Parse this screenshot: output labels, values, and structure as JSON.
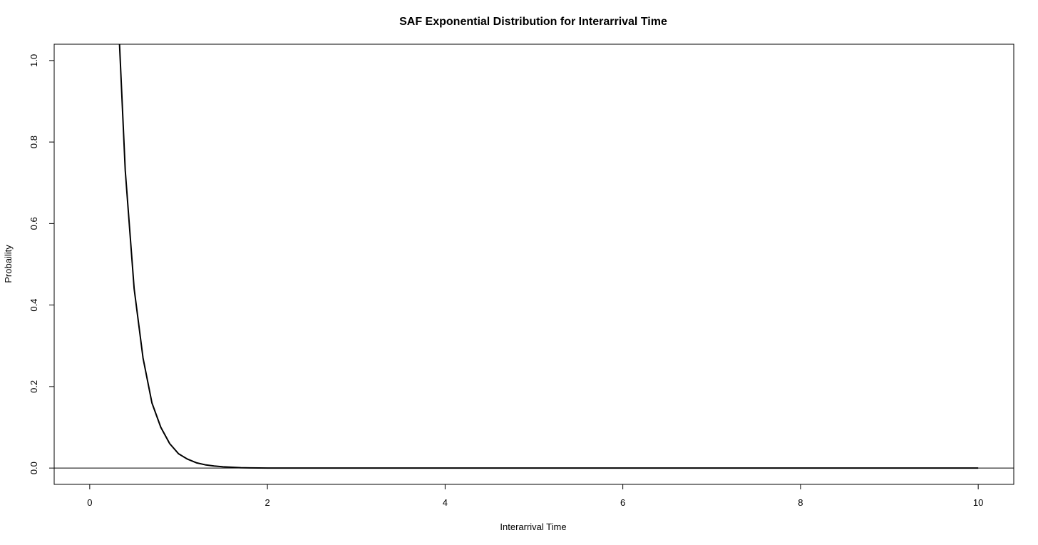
{
  "chart_data": {
    "type": "line",
    "title": "SAF Exponential Distribution for Interarrival Time",
    "xlabel": "Interarrival Time",
    "ylabel": "Probaility",
    "xlim": [
      -0.4,
      10.4
    ],
    "ylim": [
      -0.04,
      1.04
    ],
    "x_ticks": [
      0,
      2,
      4,
      6,
      8,
      10
    ],
    "y_ticks": [
      0.0,
      0.2,
      0.4,
      0.6,
      0.8,
      1.0
    ],
    "x_tick_labels": [
      "0",
      "2",
      "4",
      "6",
      "8",
      "10"
    ],
    "y_tick_labels": [
      "0.0",
      "0.2",
      "0.4",
      "0.6",
      "0.8",
      "1.0"
    ],
    "reference_line": {
      "y": 0
    },
    "grid": false,
    "line_color": "#000000",
    "series": [
      {
        "x": [
          0.3,
          0.4,
          0.5,
          0.6,
          0.7,
          0.8,
          0.9,
          1.0,
          1.1,
          1.2,
          1.3,
          1.4,
          1.5,
          1.6,
          1.7,
          1.8,
          2,
          3,
          4,
          5,
          6,
          7,
          8,
          9,
          10
        ],
        "y": [
          1.21,
          0.73,
          0.44,
          0.27,
          0.16,
          0.1,
          0.06,
          0.035,
          0.022,
          0.013,
          0.008,
          0.005,
          0.003,
          0.002,
          0.001,
          0.0005,
          0,
          0,
          0,
          0,
          0,
          0,
          0,
          0,
          0
        ]
      }
    ]
  }
}
